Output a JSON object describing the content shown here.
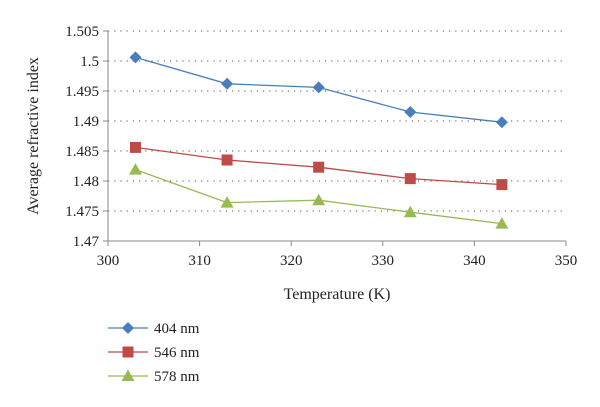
{
  "chart_data": {
    "type": "line",
    "xlabel": "Temperature (K)",
    "ylabel": "Average refractive index",
    "xlim": [
      300,
      350
    ],
    "ylim": [
      1.47,
      1.505
    ],
    "xticks": [
      "300",
      "310",
      "320",
      "330",
      "340",
      "350"
    ],
    "yticks": [
      "1.47",
      "1.475",
      "1.48",
      "1.485",
      "1.49",
      "1.495",
      "1.5",
      "1.505"
    ],
    "grid": "horizontal dotted",
    "legend_position": "bottom-left",
    "x": [
      303,
      313,
      323,
      333,
      343
    ],
    "series": [
      {
        "name": "404 nm",
        "marker": "diamond",
        "color": "#4a7ebb",
        "values": [
          1.5006,
          1.4962,
          1.4956,
          1.4915,
          1.4898
        ]
      },
      {
        "name": "546 nm",
        "marker": "square",
        "color": "#be4b48",
        "values": [
          1.4856,
          1.4835,
          1.4823,
          1.4804,
          1.4794
        ]
      },
      {
        "name": "578 nm",
        "marker": "triangle",
        "color": "#98b954",
        "values": [
          1.4819,
          1.4764,
          1.4768,
          1.4748,
          1.4729
        ]
      }
    ]
  }
}
